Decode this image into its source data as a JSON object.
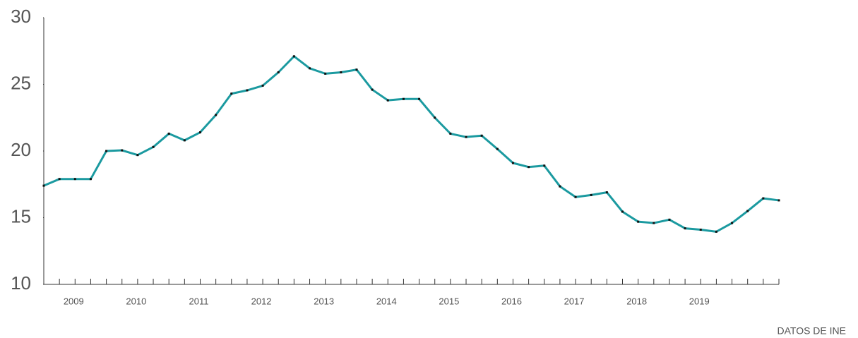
{
  "chart_data": {
    "type": "line",
    "categories": [
      null,
      null,
      "2009",
      null,
      null,
      null,
      "2010",
      null,
      null,
      null,
      "2011",
      null,
      null,
      null,
      "2012",
      null,
      null,
      null,
      "2013",
      null,
      null,
      null,
      "2014",
      null,
      null,
      null,
      "2015",
      null,
      null,
      null,
      "2016",
      null,
      null,
      null,
      "2017",
      null,
      null,
      null,
      "2018",
      null,
      null,
      null,
      "2019",
      null,
      null,
      null,
      null,
      null
    ],
    "series": [
      {
        "color": "#1b9aa0",
        "values": [
          17.4,
          17.9,
          17.9,
          17.9,
          20.0,
          20.05,
          19.7,
          20.3,
          21.3,
          20.8,
          21.4,
          22.7,
          24.3,
          24.55,
          24.9,
          25.9,
          27.1,
          26.2,
          25.8,
          25.9,
          26.1,
          24.6,
          23.8,
          23.9,
          23.9,
          22.5,
          21.3,
          21.05,
          21.15,
          20.15,
          19.1,
          18.8,
          18.9,
          17.35,
          16.55,
          16.7,
          16.9,
          15.45,
          14.7,
          14.6,
          14.85,
          14.2,
          14.1,
          13.95,
          14.6,
          15.5,
          16.45,
          16.3
        ]
      }
    ],
    "ylim": [
      10,
      30
    ],
    "yticks": [
      10,
      15,
      20,
      25,
      30
    ],
    "source": "DATOS DE INE"
  }
}
